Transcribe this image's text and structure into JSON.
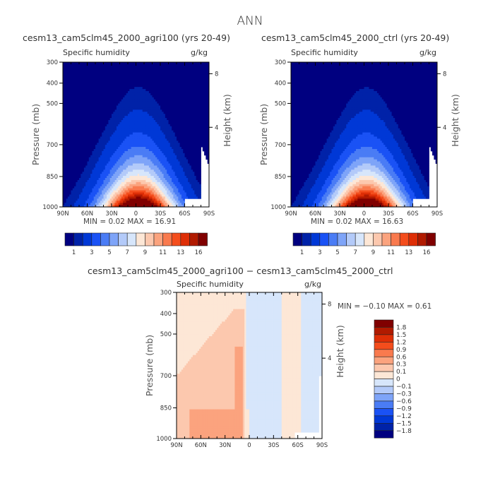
{
  "title": "ANN",
  "colors": {
    "abs_levels": [
      "#000080",
      "#0022a8",
      "#0038d6",
      "#1a52f5",
      "#4a7cf5",
      "#7ea4f8",
      "#b3caf9",
      "#d7e6fb",
      "#fde7d6",
      "#fcc8ae",
      "#fba37e",
      "#f97a4e",
      "#f44d1c",
      "#de2e06",
      "#b11a00",
      "#800000"
    ],
    "diff_levels": [
      "#000080",
      "#0022a8",
      "#0038d6",
      "#1a52f5",
      "#4a7cf5",
      "#7ea4f8",
      "#b3caf9",
      "#d7e6fb",
      "#fde7d6",
      "#fcc8ae",
      "#fba37e",
      "#f97a4e",
      "#f44d1c",
      "#de2e06",
      "#b11a00",
      "#800000"
    ]
  },
  "chart_data": [
    {
      "type": "heatmap",
      "id": "agri100",
      "title": "cesm13_cam5clm45_2000_agri100 (yrs 20-49)",
      "left_label": "Specific humidity",
      "right_label": "g/kg",
      "xlabel": "",
      "ylabel": "Pressure (mb)",
      "y2label": "Height (km)",
      "x_ticks": [
        "90N",
        "60N",
        "30N",
        "0",
        "30S",
        "60S",
        "90S"
      ],
      "y_ticks": [
        "300",
        "400",
        "500",
        "700",
        "850",
        "1000"
      ],
      "y_tick_values": [
        300,
        400,
        500,
        700,
        850,
        1000
      ],
      "y2_ticks": [
        "8",
        "4"
      ],
      "ylim": [
        1000,
        300
      ],
      "xlim": [
        90,
        -90
      ],
      "stats": "MIN =    0.02   MAX =   16.91",
      "min": 0.02,
      "max": 16.91,
      "colorbar_labels": [
        "1",
        "3",
        "5",
        "7",
        "9",
        "11",
        "13",
        "16"
      ],
      "levels": [
        0.5,
        1,
        2,
        3,
        4,
        5,
        6,
        7,
        8,
        9,
        10,
        11,
        12,
        13,
        14,
        15
      ],
      "field": "zonal_mean_specific_humidity_peak_near_equator_surface"
    },
    {
      "type": "heatmap",
      "id": "ctrl",
      "title": "cesm13_cam5clm45_2000_ctrl (yrs 20-49)",
      "left_label": "Specific humidity",
      "right_label": "g/kg",
      "xlabel": "",
      "ylabel": "Pressure (mb)",
      "y2label": "Height (km)",
      "x_ticks": [
        "90N",
        "60N",
        "30N",
        "0",
        "30S",
        "60S",
        "90S"
      ],
      "y_ticks": [
        "300",
        "400",
        "500",
        "700",
        "850",
        "1000"
      ],
      "y_tick_values": [
        300,
        400,
        500,
        700,
        850,
        1000
      ],
      "y2_ticks": [
        "8",
        "4"
      ],
      "ylim": [
        1000,
        300
      ],
      "xlim": [
        90,
        -90
      ],
      "stats": "MIN =    0.02   MAX =   16.63",
      "min": 0.02,
      "max": 16.63,
      "colorbar_labels": [
        "1",
        "3",
        "5",
        "7",
        "9",
        "11",
        "13",
        "16"
      ],
      "levels": [
        0.5,
        1,
        2,
        3,
        4,
        5,
        6,
        7,
        8,
        9,
        10,
        11,
        12,
        13,
        14,
        15
      ]
    },
    {
      "type": "heatmap",
      "id": "diff",
      "title": "cesm13_cam5clm45_2000_agri100 − cesm13_cam5clm45_2000_ctrl",
      "left_label": "Specific humidity",
      "right_label": "g/kg",
      "xlabel": "",
      "ylabel": "Pressure (mb)",
      "y2label": "Height (km)",
      "x_ticks": [
        "90N",
        "60N",
        "30N",
        "0",
        "30S",
        "60S",
        "90S"
      ],
      "y_ticks": [
        "300",
        "400",
        "500",
        "700",
        "850",
        "1000"
      ],
      "y_tick_values": [
        300,
        400,
        500,
        700,
        850,
        1000
      ],
      "y2_ticks": [
        "8",
        "4"
      ],
      "ylim": [
        1000,
        300
      ],
      "xlim": [
        90,
        -90
      ],
      "stats": "MIN =   −0.10   MAX =    0.61",
      "min": -0.1,
      "max": 0.61,
      "colorbar_labels": [
        "1.8",
        "1.5",
        "1.2",
        "0.9",
        "0.6",
        "0.3",
        "0.1",
        "0",
        "−0.1",
        "−0.3",
        "−0.6",
        "−0.9",
        "−1.2",
        "−1.5",
        "−1.8"
      ],
      "regions": [
        {
          "range": "0.1 to 0.3",
          "description": "NH extratropics and tropics north of equator, lower troposphere"
        },
        {
          "range": "0.3 to 0.6",
          "description": "NH 70N-10N near surface up to ~550 mb near 15N"
        },
        {
          "range": "0 to 0.1",
          "description": "Most of NH column and 40S-65S band"
        },
        {
          "range": "-0.1 to 0",
          "description": "Equator to ~40S and 65S-90S"
        }
      ]
    }
  ]
}
